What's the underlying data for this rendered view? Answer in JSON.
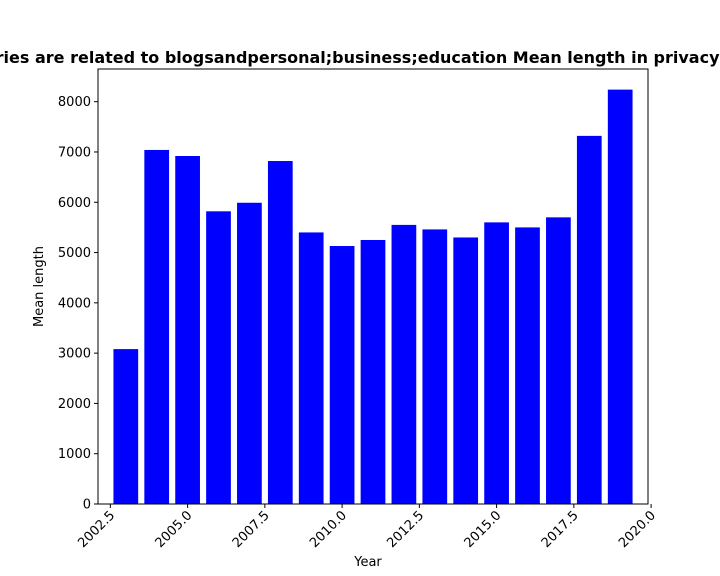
{
  "chart_data": {
    "type": "bar",
    "title": "Categories are related to blogsandpersonal;business;education Mean length in privacy policies",
    "xlabel": "Year",
    "ylabel": "Mean length",
    "x": [
      2003,
      2004,
      2005,
      2006,
      2007,
      2008,
      2009,
      2010,
      2011,
      2012,
      2013,
      2014,
      2015,
      2016,
      2017,
      2018,
      2019
    ],
    "values": [
      3080,
      7040,
      6920,
      5820,
      5990,
      6820,
      5400,
      5130,
      5250,
      5550,
      5460,
      5300,
      5600,
      5500,
      5700,
      7320,
      8240
    ],
    "xlim": [
      2002.1,
      2019.9
    ],
    "ylim": [
      0,
      8650
    ],
    "xticks": [
      2002.5,
      2005.0,
      2007.5,
      2010.0,
      2012.5,
      2015.0,
      2017.5,
      2020.0
    ],
    "xtick_labels": [
      "2002.5",
      "2005.0",
      "2007.5",
      "2010.0",
      "2012.5",
      "2015.0",
      "2017.5",
      "2020.0"
    ],
    "yticks": [
      0,
      1000,
      2000,
      3000,
      4000,
      5000,
      6000,
      7000,
      8000
    ],
    "ytick_labels": [
      "0",
      "1000",
      "2000",
      "3000",
      "4000",
      "5000",
      "6000",
      "7000",
      "8000"
    ],
    "bar_color": "#0000ff",
    "grid": false,
    "legend": "none"
  }
}
